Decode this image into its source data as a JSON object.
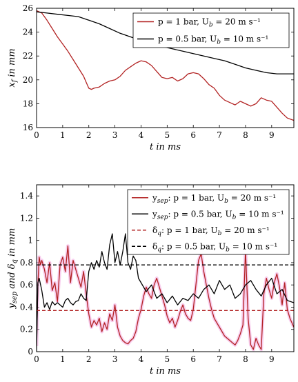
{
  "chart_data": [
    {
      "type": "line",
      "xlabel": "t in ms",
      "ylabel": "x_f in mm",
      "xlim": [
        0,
        9.85
      ],
      "ylim": [
        16,
        26
      ],
      "xticks": [
        0,
        1,
        2,
        3,
        4,
        5,
        6,
        7,
        8,
        9
      ],
      "yticks": [
        16,
        18,
        20,
        22,
        24,
        26
      ],
      "legend_position": "top-right",
      "colors": {
        "red": "#b22222",
        "black": "#000000"
      },
      "series": [
        {
          "name": "p = 1 bar, U_b = 20 m s⁻¹",
          "style": "red-solid",
          "x": [
            0,
            0.2,
            0.4,
            0.6,
            0.8,
            1.0,
            1.2,
            1.4,
            1.6,
            1.8,
            1.9,
            2.0,
            2.1,
            2.2,
            2.4,
            2.6,
            2.8,
            3.0,
            3.2,
            3.4,
            3.6,
            3.8,
            4.0,
            4.2,
            4.4,
            4.6,
            4.8,
            5.0,
            5.2,
            5.4,
            5.6,
            5.8,
            6.0,
            6.2,
            6.4,
            6.6,
            6.8,
            7.0,
            7.2,
            7.4,
            7.6,
            7.8,
            8.0,
            8.2,
            8.4,
            8.6,
            8.8,
            9.0,
            9.2,
            9.4,
            9.6,
            9.85
          ],
          "y": [
            25.8,
            25.6,
            25.0,
            24.3,
            23.6,
            23.0,
            22.4,
            21.7,
            21.0,
            20.3,
            19.8,
            19.3,
            19.2,
            19.3,
            19.4,
            19.7,
            19.9,
            20.0,
            20.3,
            20.8,
            21.1,
            21.4,
            21.6,
            21.5,
            21.2,
            20.7,
            20.2,
            20.1,
            20.2,
            19.9,
            20.1,
            20.5,
            20.6,
            20.5,
            20.1,
            19.6,
            19.3,
            18.7,
            18.3,
            18.1,
            17.9,
            18.2,
            18.0,
            17.8,
            18.0,
            18.5,
            18.3,
            18.2,
            17.7,
            17.2,
            16.8,
            16.6
          ]
        },
        {
          "name": "p = 0.5 bar, U_b = 10 m s⁻¹",
          "style": "black-solid",
          "x": [
            0,
            0.4,
            0.8,
            1.2,
            1.6,
            2.0,
            2.4,
            2.8,
            3.2,
            3.6,
            4.0,
            4.4,
            4.8,
            5.2,
            5.6,
            6.0,
            6.4,
            6.8,
            7.2,
            7.6,
            8.0,
            8.4,
            8.8,
            9.2,
            9.6,
            9.85
          ],
          "y": [
            25.7,
            25.6,
            25.5,
            25.4,
            25.3,
            25.0,
            24.7,
            24.3,
            23.9,
            23.6,
            23.3,
            23.0,
            22.8,
            22.6,
            22.4,
            22.2,
            22.0,
            21.8,
            21.6,
            21.3,
            21.0,
            20.8,
            20.6,
            20.5,
            20.5,
            20.5
          ]
        }
      ]
    },
    {
      "type": "line",
      "xlabel": "t in ms",
      "ylabel": "y_sep and δ_q in mm",
      "xlim": [
        0,
        9.85
      ],
      "ylim": [
        0,
        1.5
      ],
      "xticks": [
        0,
        1,
        2,
        3,
        4,
        5,
        6,
        7,
        8,
        9
      ],
      "yticks": [
        0,
        0.2,
        0.4,
        0.6,
        0.8,
        1,
        1.2,
        1.4
      ],
      "legend_position": "top-right",
      "colors": {
        "red": "#b22222",
        "black": "#000000",
        "glow": "#f2a6e0"
      },
      "series": [
        {
          "name": "y_sep: p = 1 bar, U_b = 20 m s⁻¹",
          "style": "red-solid-glow",
          "x": [
            0,
            0.05,
            0.1,
            0.15,
            0.2,
            0.3,
            0.4,
            0.5,
            0.6,
            0.7,
            0.8,
            0.9,
            1.0,
            1.1,
            1.2,
            1.3,
            1.4,
            1.5,
            1.6,
            1.7,
            1.8,
            1.9,
            2.0,
            2.1,
            2.2,
            2.3,
            2.4,
            2.5,
            2.6,
            2.7,
            2.8,
            2.9,
            3.0,
            3.1,
            3.2,
            3.3,
            3.4,
            3.5,
            3.6,
            3.7,
            3.8,
            3.9,
            4.0,
            4.1,
            4.2,
            4.3,
            4.4,
            4.5,
            4.6,
            4.7,
            4.8,
            4.9,
            5.0,
            5.1,
            5.2,
            5.3,
            5.4,
            5.5,
            5.6,
            5.7,
            5.8,
            5.9,
            6.0,
            6.1,
            6.2,
            6.3,
            6.4,
            6.5,
            6.6,
            6.7,
            6.8,
            6.9,
            7.0,
            7.1,
            7.2,
            7.3,
            7.4,
            7.5,
            7.6,
            7.7,
            7.8,
            7.9,
            8.0,
            8.1,
            8.2,
            8.3,
            8.4,
            8.5,
            8.6,
            8.7,
            8.8,
            8.9,
            9.0,
            9.1,
            9.2,
            9.3,
            9.4,
            9.5,
            9.6,
            9.7,
            9.85
          ],
          "y": [
            0.05,
            0.6,
            0.85,
            0.78,
            0.82,
            0.74,
            0.62,
            0.8,
            0.55,
            0.62,
            0.45,
            0.78,
            0.85,
            0.72,
            0.95,
            0.62,
            0.82,
            0.74,
            0.66,
            0.58,
            0.72,
            0.52,
            0.34,
            0.22,
            0.28,
            0.24,
            0.3,
            0.18,
            0.26,
            0.2,
            0.34,
            0.28,
            0.42,
            0.22,
            0.14,
            0.1,
            0.08,
            0.07,
            0.1,
            0.12,
            0.18,
            0.3,
            0.38,
            0.5,
            0.58,
            0.52,
            0.48,
            0.6,
            0.66,
            0.58,
            0.5,
            0.42,
            0.32,
            0.26,
            0.3,
            0.22,
            0.28,
            0.36,
            0.42,
            0.34,
            0.3,
            0.28,
            0.38,
            0.6,
            0.82,
            0.88,
            0.72,
            0.6,
            0.48,
            0.38,
            0.3,
            0.26,
            0.22,
            0.18,
            0.14,
            0.12,
            0.1,
            0.08,
            0.06,
            0.1,
            0.16,
            0.24,
            0.92,
            0.3,
            0.06,
            0.02,
            0.12,
            0.06,
            0.02,
            0.52,
            0.66,
            0.56,
            0.48,
            0.62,
            0.7,
            0.58,
            0.42,
            0.62,
            0.38,
            0.3,
            0.22
          ]
        },
        {
          "name": "y_sep: p = 0.5 bar, U_b = 10 m s⁻¹",
          "style": "black-solid",
          "x": [
            0,
            0.05,
            0.1,
            0.2,
            0.3,
            0.4,
            0.5,
            0.6,
            0.7,
            0.8,
            0.9,
            1.0,
            1.1,
            1.2,
            1.3,
            1.4,
            1.5,
            1.6,
            1.7,
            1.8,
            1.9,
            2.0,
            2.1,
            2.2,
            2.3,
            2.4,
            2.5,
            2.6,
            2.7,
            2.8,
            2.9,
            3.0,
            3.1,
            3.2,
            3.3,
            3.4,
            3.5,
            3.6,
            3.7,
            3.8,
            3.9,
            4.0,
            4.2,
            4.4,
            4.6,
            4.8,
            5.0,
            5.2,
            5.4,
            5.6,
            5.8,
            6.0,
            6.2,
            6.4,
            6.6,
            6.8,
            7.0,
            7.2,
            7.4,
            7.6,
            7.8,
            8.0,
            8.2,
            8.4,
            8.6,
            8.8,
            9.0,
            9.2,
            9.4,
            9.6,
            9.85
          ],
          "y": [
            0.0,
            0.62,
            0.66,
            0.55,
            0.4,
            0.44,
            0.38,
            0.45,
            0.42,
            0.44,
            0.42,
            0.4,
            0.46,
            0.48,
            0.44,
            0.42,
            0.45,
            0.46,
            0.52,
            0.48,
            0.46,
            0.72,
            0.8,
            0.74,
            0.82,
            0.76,
            0.9,
            0.8,
            0.74,
            0.96,
            1.06,
            0.8,
            0.9,
            0.78,
            0.9,
            1.06,
            0.8,
            0.74,
            0.86,
            0.82,
            0.66,
            0.62,
            0.54,
            0.6,
            0.48,
            0.52,
            0.44,
            0.5,
            0.42,
            0.48,
            0.46,
            0.52,
            0.48,
            0.56,
            0.6,
            0.52,
            0.64,
            0.56,
            0.6,
            0.48,
            0.52,
            0.6,
            0.64,
            0.56,
            0.5,
            0.6,
            0.66,
            0.52,
            0.56,
            0.46,
            0.44
          ]
        },
        {
          "name": "δ_q: p = 1 bar, U_b = 20 m s⁻¹",
          "style": "red-dashed",
          "x": [
            0,
            9.85
          ],
          "y": [
            0.37,
            0.37
          ]
        },
        {
          "name": "δ_q: p = 0.5 bar, U_b = 10 m s⁻¹",
          "style": "black-dashed",
          "x": [
            0,
            9.85
          ],
          "y": [
            0.78,
            0.78
          ]
        }
      ]
    }
  ]
}
